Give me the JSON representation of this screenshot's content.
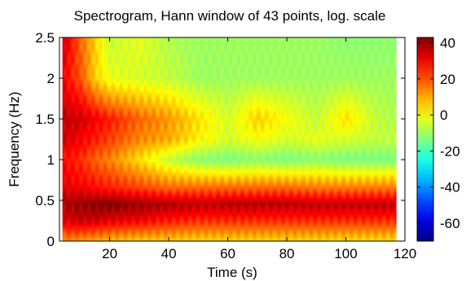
{
  "chart_data": {
    "type": "heatmap",
    "title": "Spectrogram, Hann window of 43 points, log. scale",
    "xlabel": "Time (s)",
    "ylabel": "Frequency (Hz)",
    "xlim": [
      3,
      120
    ],
    "ylim": [
      0,
      2.5
    ],
    "x_ticks": [
      20,
      40,
      60,
      80,
      100,
      120
    ],
    "y_ticks": [
      0,
      0.5,
      1,
      1.5,
      2,
      2.5
    ],
    "x_tick_labels": [
      "20",
      "40",
      "60",
      "80",
      "100",
      "120"
    ],
    "y_tick_labels": [
      "0",
      "0.5",
      "1",
      "1.5",
      "2",
      "2.5"
    ],
    "data_x_extent": [
      4,
      117
    ],
    "colorbar": {
      "colormap": "jet",
      "clim": [
        -70,
        43
      ],
      "ticks": [
        40,
        20,
        0,
        -20,
        -40,
        -60
      ],
      "tick_labels": [
        "40",
        "20",
        "0",
        "-20",
        "-40",
        "-60"
      ]
    },
    "time_axis": [
      4,
      10,
      15,
      20,
      30,
      40,
      50,
      60,
      70,
      80,
      90,
      100,
      110,
      117
    ],
    "frequency_axis": [
      0,
      0.25,
      0.45,
      0.65,
      1.0,
      1.25,
      1.5,
      2.0,
      2.5
    ],
    "power_db": [
      [
        14,
        12,
        10,
        8,
        6,
        6,
        5,
        5,
        5,
        5,
        5,
        4,
        4,
        4
      ],
      [
        32,
        35,
        34,
        32,
        30,
        26,
        24,
        24,
        24,
        24,
        24,
        24,
        24,
        24
      ],
      [
        38,
        40,
        42,
        43,
        40,
        38,
        36,
        37,
        37,
        37,
        36,
        36,
        36,
        36
      ],
      [
        32,
        30,
        28,
        26,
        22,
        18,
        18,
        18,
        18,
        18,
        16,
        16,
        16,
        16
      ],
      [
        28,
        24,
        18,
        14,
        4,
        -6,
        -12,
        -14,
        -12,
        -14,
        -12,
        -14,
        -14,
        -14
      ],
      [
        34,
        30,
        26,
        22,
        14,
        10,
        2,
        -4,
        0,
        -4,
        -2,
        -4,
        -6,
        -6
      ],
      [
        36,
        34,
        30,
        26,
        18,
        12,
        4,
        -4,
        6,
        0,
        -6,
        4,
        -6,
        -8
      ],
      [
        30,
        20,
        6,
        -2,
        -4,
        -6,
        -10,
        -10,
        -10,
        -10,
        -10,
        -10,
        -10,
        -10
      ],
      [
        36,
        18,
        6,
        -6,
        -2,
        -8,
        -10,
        -10,
        -10,
        -10,
        -10,
        -12,
        -12,
        -12
      ]
    ]
  }
}
